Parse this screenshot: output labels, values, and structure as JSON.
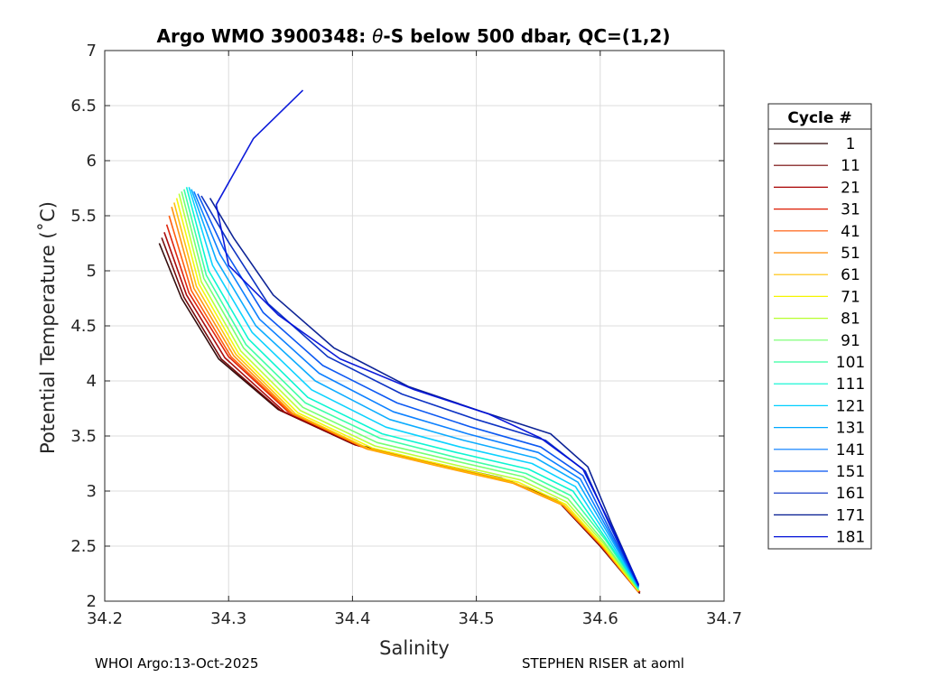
{
  "chart_data": {
    "type": "line",
    "title": "Argo WMO 3900348: θ-S below 500 dbar,  QC=(1,2)",
    "title_parts": {
      "prefix": "Argo WMO 3900348: ",
      "symbol": "θ",
      "suffix": "-S below 500 dbar,  QC=(1,2)"
    },
    "xlabel": "Salinity",
    "ylabel": "Potential Temperature (˚C)",
    "xlim": [
      34.2,
      34.7
    ],
    "ylim": [
      2,
      7
    ],
    "xticks": [
      "34.2",
      "34.3",
      "34.4",
      "34.5",
      "34.6",
      "34.7"
    ],
    "yticks": [
      "2",
      "2.5",
      "3",
      "3.5",
      "4",
      "4.5",
      "5",
      "5.5",
      "6",
      "6.5",
      "7"
    ],
    "grid": true,
    "legend": {
      "title": "Cycle #",
      "placement": "right",
      "entries": [
        "1",
        "11",
        "21",
        "31",
        "41",
        "51",
        "61",
        "71",
        "81",
        "91",
        "101",
        "111",
        "121",
        "131",
        "141",
        "151",
        "161",
        "171",
        "181"
      ],
      "colors": [
        "#2a0000",
        "#700000",
        "#a80000",
        "#dd1a00",
        "#ff5500",
        "#ff8c00",
        "#ffc000",
        "#f5f500",
        "#b8ff2e",
        "#70ff6a",
        "#35ffa0",
        "#00f5d0",
        "#00d0ff",
        "#00a8ff",
        "#007aff",
        "#0050f0",
        "#0028c0",
        "#001890",
        "#0010d8"
      ]
    },
    "series": [
      {
        "name": "1",
        "salinity": [
          34.244,
          34.262,
          34.292,
          34.34,
          34.4,
          34.46,
          34.52,
          34.565,
          34.6,
          34.632
        ],
        "theta": [
          5.25,
          4.75,
          4.2,
          3.74,
          3.43,
          3.27,
          3.12,
          2.92,
          2.5,
          2.07
        ]
      },
      {
        "name": "11",
        "salinity": [
          34.246,
          34.264,
          34.294,
          34.342,
          34.402,
          34.462,
          34.522,
          34.566,
          34.6,
          34.632
        ],
        "theta": [
          5.3,
          4.76,
          4.2,
          3.73,
          3.42,
          3.26,
          3.11,
          2.91,
          2.5,
          2.08
        ]
      },
      {
        "name": "21",
        "salinity": [
          34.248,
          34.266,
          34.297,
          34.345,
          34.405,
          34.465,
          34.524,
          34.567,
          34.601,
          34.632
        ],
        "theta": [
          5.35,
          4.78,
          4.21,
          3.72,
          3.41,
          3.25,
          3.1,
          2.9,
          2.5,
          2.08
        ]
      },
      {
        "name": "31",
        "salinity": [
          34.25,
          34.268,
          34.3,
          34.348,
          34.408,
          34.468,
          34.526,
          34.568,
          34.601,
          34.632
        ],
        "theta": [
          5.42,
          4.8,
          4.22,
          3.72,
          3.4,
          3.24,
          3.09,
          2.89,
          2.5,
          2.08
        ]
      },
      {
        "name": "41",
        "salinity": [
          34.252,
          34.27,
          34.302,
          34.35,
          34.41,
          34.47,
          34.528,
          34.569,
          34.601,
          34.631
        ],
        "theta": [
          5.5,
          4.82,
          4.22,
          3.71,
          3.39,
          3.23,
          3.08,
          2.88,
          2.5,
          2.08
        ]
      },
      {
        "name": "51",
        "salinity": [
          34.254,
          34.272,
          34.304,
          34.352,
          34.412,
          34.472,
          34.53,
          34.57,
          34.602,
          34.631
        ],
        "theta": [
          5.58,
          4.84,
          4.23,
          3.7,
          3.38,
          3.22,
          3.07,
          2.87,
          2.5,
          2.09
        ]
      },
      {
        "name": "61",
        "salinity": [
          34.256,
          34.274,
          34.306,
          34.354,
          34.414,
          34.474,
          34.532,
          34.571,
          34.602,
          34.631
        ],
        "theta": [
          5.62,
          4.86,
          4.24,
          3.7,
          3.38,
          3.22,
          3.07,
          2.87,
          2.5,
          2.09
        ]
      },
      {
        "name": "71",
        "salinity": [
          34.258,
          34.276,
          34.308,
          34.356,
          34.416,
          34.476,
          34.534,
          34.572,
          34.602,
          34.631
        ],
        "theta": [
          5.66,
          4.88,
          4.25,
          3.71,
          3.39,
          3.23,
          3.08,
          2.88,
          2.51,
          2.09
        ]
      },
      {
        "name": "81",
        "salinity": [
          34.26,
          34.278,
          34.31,
          34.358,
          34.418,
          34.478,
          34.536,
          34.573,
          34.603,
          34.631
        ],
        "theta": [
          5.7,
          4.9,
          4.27,
          3.73,
          3.41,
          3.25,
          3.1,
          2.9,
          2.52,
          2.1
        ]
      },
      {
        "name": "91",
        "salinity": [
          34.262,
          34.28,
          34.312,
          34.36,
          34.42,
          34.48,
          34.538,
          34.574,
          34.603,
          34.631
        ],
        "theta": [
          5.72,
          4.93,
          4.3,
          3.76,
          3.44,
          3.28,
          3.13,
          2.93,
          2.54,
          2.1
        ]
      },
      {
        "name": "101",
        "salinity": [
          34.264,
          34.282,
          34.314,
          34.362,
          34.422,
          34.482,
          34.54,
          34.576,
          34.604,
          34.631
        ],
        "theta": [
          5.74,
          4.96,
          4.33,
          3.8,
          3.48,
          3.31,
          3.16,
          2.96,
          2.56,
          2.11
        ]
      },
      {
        "name": "111",
        "salinity": [
          34.266,
          34.284,
          34.316,
          34.364,
          34.424,
          34.484,
          34.542,
          34.578,
          34.604,
          34.631
        ],
        "theta": [
          5.76,
          5.0,
          4.38,
          3.85,
          3.52,
          3.35,
          3.2,
          3.0,
          2.58,
          2.12
        ]
      },
      {
        "name": "121",
        "salinity": [
          34.268,
          34.287,
          34.319,
          34.367,
          34.427,
          34.487,
          34.545,
          34.58,
          34.605,
          34.631
        ],
        "theta": [
          5.76,
          5.05,
          4.44,
          3.92,
          3.58,
          3.4,
          3.25,
          3.04,
          2.6,
          2.12
        ]
      },
      {
        "name": "131",
        "salinity": [
          34.27,
          34.29,
          34.322,
          34.37,
          34.43,
          34.49,
          34.548,
          34.582,
          34.606,
          34.631
        ],
        "theta": [
          5.74,
          5.1,
          4.5,
          4.0,
          3.65,
          3.46,
          3.3,
          3.08,
          2.62,
          2.13
        ]
      },
      {
        "name": "141",
        "salinity": [
          34.272,
          34.293,
          34.325,
          34.373,
          34.433,
          34.493,
          34.55,
          34.584,
          34.607,
          34.631
        ],
        "theta": [
          5.72,
          5.15,
          4.56,
          4.07,
          3.72,
          3.52,
          3.35,
          3.11,
          2.63,
          2.13
        ]
      },
      {
        "name": "151",
        "salinity": [
          34.275,
          34.296,
          34.328,
          34.376,
          34.436,
          34.496,
          34.552,
          34.586,
          34.608,
          34.631
        ],
        "theta": [
          5.7,
          5.2,
          4.62,
          4.14,
          3.8,
          3.58,
          3.4,
          3.14,
          2.64,
          2.14
        ]
      },
      {
        "name": "161",
        "salinity": [
          34.278,
          34.3,
          34.332,
          34.38,
          34.44,
          34.5,
          34.556,
          34.588,
          34.609,
          34.631
        ],
        "theta": [
          5.68,
          5.26,
          4.7,
          4.22,
          3.88,
          3.65,
          3.46,
          3.18,
          2.66,
          2.14
        ]
      },
      {
        "name": "171",
        "salinity": [
          34.285,
          34.304,
          34.336,
          34.385,
          34.445,
          34.505,
          34.56,
          34.59,
          34.61,
          34.631
        ],
        "theta": [
          5.66,
          5.3,
          4.78,
          4.3,
          3.95,
          3.72,
          3.52,
          3.22,
          2.68,
          2.15
        ]
      },
      {
        "name": "181",
        "salinity": [
          34.36,
          34.32,
          34.29,
          34.3,
          34.34,
          34.39,
          34.45,
          34.51,
          34.552,
          34.586,
          34.609,
          34.631
        ],
        "theta": [
          6.64,
          6.2,
          5.6,
          5.05,
          4.6,
          4.2,
          3.92,
          3.7,
          3.48,
          3.2,
          2.68,
          2.15
        ]
      }
    ]
  },
  "footer": {
    "left": "WHOI Argo:13-Oct-2025",
    "right": "STEPHEN RISER at aoml"
  }
}
